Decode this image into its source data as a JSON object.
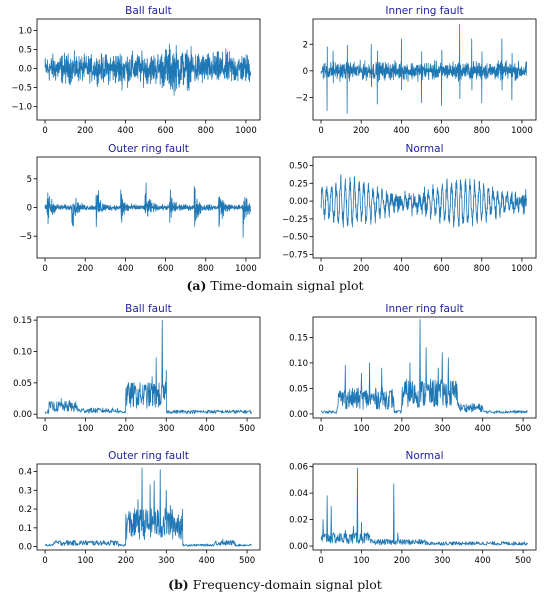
{
  "captions": {
    "a_letter": "(a)",
    "a_text": " Time-domain signal plot",
    "b_letter": "(b)",
    "b_text": " Frequency-domain signal plot"
  },
  "style": {
    "line_color": "#1f77b4",
    "title_color": "#1f1f9f",
    "axis_color": "#000000"
  },
  "chart_data": [
    {
      "type": "line",
      "group": "time-domain",
      "title": "Ball fault",
      "xlim": [
        -40,
        1070
      ],
      "ylim": [
        -1.35,
        1.3
      ],
      "xticks": [
        0,
        200,
        400,
        600,
        800,
        1000
      ],
      "yticks": [
        -1.0,
        -0.5,
        0.0,
        0.5,
        1.0
      ],
      "ytick_labels": [
        "−1.0",
        "−0.5",
        "0.0",
        "0.5",
        "1.0"
      ],
      "n_points": 1024,
      "series": [
        {
          "kind": "noise",
          "amplitude": 0.55,
          "envelope": [
            [
              0,
              0.5
            ],
            [
              100,
              0.6
            ],
            [
              200,
              0.5
            ],
            [
              300,
              0.55
            ],
            [
              380,
              0.7
            ],
            [
              450,
              0.6
            ],
            [
              550,
              0.6
            ],
            [
              630,
              0.95
            ],
            [
              700,
              0.75
            ],
            [
              800,
              0.6
            ],
            [
              900,
              0.65
            ],
            [
              1023,
              0.55
            ]
          ],
          "min": -1.25,
          "max": 1.15
        }
      ]
    },
    {
      "type": "line",
      "group": "time-domain",
      "title": "Inner ring fault",
      "xlim": [
        -40,
        1070
      ],
      "ylim": [
        -3.7,
        3.9
      ],
      "xticks": [
        0,
        200,
        400,
        600,
        800,
        1000
      ],
      "yticks": [
        -2,
        0,
        2
      ],
      "ytick_labels": [
        "−2",
        "0",
        "2"
      ],
      "n_points": 1024,
      "series": [
        {
          "kind": "impulse",
          "base": 0.55,
          "peaks": [
            [
              30,
              -3.0
            ],
            [
              60,
              1.5
            ],
            [
              130,
              -3.2
            ],
            [
              250,
              2.0
            ],
            [
              280,
              -2.5
            ],
            [
              400,
              2.4
            ],
            [
              500,
              -2.4
            ],
            [
              600,
              -2.6
            ],
            [
              690,
              3.5
            ],
            [
              750,
              2.4
            ],
            [
              800,
              -2.4
            ],
            [
              900,
              2.4
            ],
            [
              950,
              -2.2
            ]
          ],
          "min": -3.3,
          "max": 3.6
        }
      ]
    },
    {
      "type": "line",
      "group": "time-domain",
      "title": "Outer ring fault",
      "xlim": [
        -40,
        1070
      ],
      "ylim": [
        -8.8,
        8.8
      ],
      "xticks": [
        0,
        200,
        400,
        600,
        800,
        1000
      ],
      "yticks": [
        -5,
        0,
        5
      ],
      "ytick_labels": [
        "−5",
        "0",
        "5"
      ],
      "n_points": 1024,
      "series": [
        {
          "kind": "periodic-impulse",
          "base": 0.8,
          "period": 122,
          "offset": 10,
          "peak": 7.5,
          "decay": 0.06,
          "min": -8.0,
          "max": 8.2
        }
      ]
    },
    {
      "type": "line",
      "group": "time-domain",
      "title": "Normal",
      "xlim": [
        -40,
        1070
      ],
      "ylim": [
        -0.8,
        0.62
      ],
      "xticks": [
        0,
        200,
        400,
        600,
        800,
        1000
      ],
      "yticks": [
        -0.75,
        -0.5,
        -0.25,
        0.0,
        0.25,
        0.5
      ],
      "ytick_labels": [
        "−0.75",
        "−0.50",
        "−0.25",
        "0.00",
        "0.25",
        "0.50"
      ],
      "n_points": 1024,
      "series": [
        {
          "kind": "oscillation",
          "amplitude": 0.28,
          "period": 23,
          "noise": 0.1,
          "offset": -0.02,
          "min": -0.75,
          "max": 0.57
        }
      ]
    },
    {
      "type": "line",
      "group": "frequency-domain",
      "title": "Ball fault",
      "xlim": [
        -20,
        532
      ],
      "ylim": [
        -0.006,
        0.155
      ],
      "xticks": [
        0,
        100,
        200,
        300,
        400,
        500
      ],
      "yticks": [
        0.0,
        0.05,
        0.1,
        0.15
      ],
      "ytick_labels": [
        "0.00",
        "0.05",
        "0.10",
        "0.15"
      ],
      "n_points": 512,
      "series": [
        {
          "kind": "spectrum",
          "floor": 0.004,
          "bands": [
            [
              10,
              80,
              0.012
            ],
            [
              80,
              180,
              0.006
            ],
            [
              200,
              300,
              0.03
            ]
          ],
          "peaks": [
            [
              290,
              0.15
            ],
            [
              275,
              0.09
            ],
            [
              300,
              0.07
            ],
            [
              265,
              0.06
            ],
            [
              250,
              0.045
            ],
            [
              40,
              0.025
            ],
            [
              60,
              0.022
            ]
          ]
        }
      ]
    },
    {
      "type": "line",
      "group": "frequency-domain",
      "title": "Inner ring fault",
      "xlim": [
        -20,
        532
      ],
      "ylim": [
        -0.008,
        0.19
      ],
      "xticks": [
        0,
        100,
        200,
        300,
        400,
        500
      ],
      "yticks": [
        0.0,
        0.05,
        0.1,
        0.15
      ],
      "ytick_labels": [
        "0.00",
        "0.05",
        "0.10",
        "0.15"
      ],
      "n_points": 512,
      "series": [
        {
          "kind": "spectrum",
          "floor": 0.004,
          "bands": [
            [
              40,
              180,
              0.03
            ],
            [
              200,
              340,
              0.04
            ],
            [
              340,
              400,
              0.012
            ]
          ],
          "peaks": [
            [
              60,
              0.095
            ],
            [
              100,
              0.08
            ],
            [
              120,
              0.1
            ],
            [
              150,
              0.09
            ],
            [
              220,
              0.1
            ],
            [
              245,
              0.185
            ],
            [
              260,
              0.13
            ],
            [
              300,
              0.12
            ],
            [
              315,
              0.11
            ],
            [
              290,
              0.09
            ]
          ]
        }
      ]
    },
    {
      "type": "line",
      "group": "frequency-domain",
      "title": "Outer ring fault",
      "xlim": [
        -20,
        532
      ],
      "ylim": [
        -0.018,
        0.44
      ],
      "xticks": [
        0,
        100,
        200,
        300,
        400,
        500
      ],
      "yticks": [
        0.0,
        0.1,
        0.2,
        0.3,
        0.4
      ],
      "ytick_labels": [
        "0.0",
        "0.1",
        "0.2",
        "0.3",
        "0.4"
      ],
      "n_points": 512,
      "series": [
        {
          "kind": "spectrum",
          "floor": 0.008,
          "bands": [
            [
              20,
              180,
              0.02
            ],
            [
              200,
              340,
              0.12
            ],
            [
              420,
              470,
              0.02
            ]
          ],
          "peaks": [
            [
              240,
              0.42
            ],
            [
              285,
              0.41
            ],
            [
              260,
              0.33
            ],
            [
              270,
              0.35
            ],
            [
              300,
              0.3
            ],
            [
              230,
              0.25
            ],
            [
              310,
              0.22
            ],
            [
              320,
              0.15
            ],
            [
              440,
              0.04
            ]
          ]
        }
      ]
    },
    {
      "type": "line",
      "group": "frequency-domain",
      "title": "Normal",
      "xlim": [
        -20,
        532
      ],
      "ylim": [
        -0.003,
        0.062
      ],
      "xticks": [
        0,
        100,
        200,
        300,
        400,
        500
      ],
      "yticks": [
        0.0,
        0.02,
        0.04,
        0.06
      ],
      "ytick_labels": [
        "0.00",
        "0.02",
        "0.04",
        "0.06"
      ],
      "n_points": 512,
      "series": [
        {
          "kind": "spectrum",
          "floor": 0.002,
          "bands": [
            [
              0,
              120,
              0.006
            ],
            [
              120,
              260,
              0.003
            ]
          ],
          "peaks": [
            [
              15,
              0.038
            ],
            [
              25,
              0.03
            ],
            [
              5,
              0.02
            ],
            [
              90,
              0.059
            ],
            [
              100,
              0.018
            ],
            [
              80,
              0.015
            ],
            [
              180,
              0.047
            ],
            [
              190,
              0.01
            ],
            [
              60,
              0.012
            ]
          ]
        }
      ]
    }
  ]
}
